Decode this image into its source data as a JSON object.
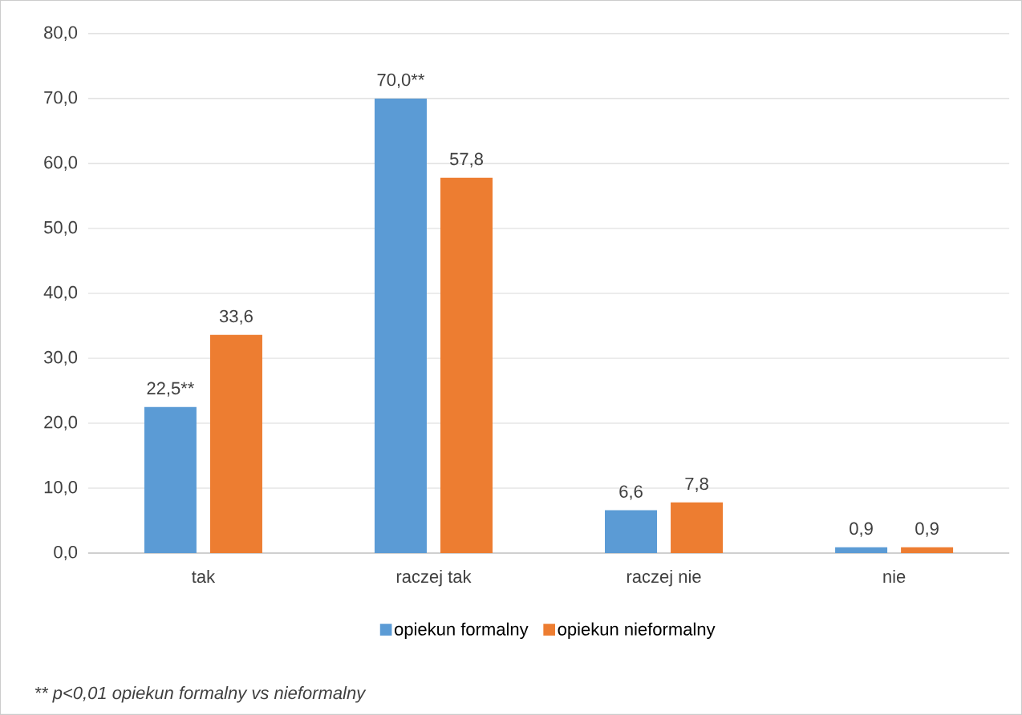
{
  "chart_data": {
    "type": "bar",
    "categories": [
      "tak",
      "raczej tak",
      "raczej nie",
      "nie"
    ],
    "series": [
      {
        "name": "opiekun formalny",
        "color": "#5b9bd5",
        "values": [
          22.5,
          70.0,
          6.6,
          0.9
        ],
        "value_labels": [
          "22,5**",
          "70,0**",
          "6,6",
          "0,9"
        ]
      },
      {
        "name": "opiekun nieformalny",
        "color": "#ed7d31",
        "values": [
          33.6,
          57.8,
          7.8,
          0.9
        ],
        "value_labels": [
          "33,6",
          "57,8",
          "7,8",
          "0,9"
        ]
      }
    ],
    "ylim": [
      0,
      80
    ],
    "yticks": [
      {
        "value": 0,
        "label": "0,0"
      },
      {
        "value": 10,
        "label": "10,0"
      },
      {
        "value": 20,
        "label": "20,0"
      },
      {
        "value": 30,
        "label": "30,0"
      },
      {
        "value": 40,
        "label": "40,0"
      },
      {
        "value": 50,
        "label": "50,0"
      },
      {
        "value": 60,
        "label": "60,0"
      },
      {
        "value": 70,
        "label": "70,0"
      },
      {
        "value": 80,
        "label": "80,0"
      }
    ],
    "grid": "y",
    "legend": "bottom",
    "annotations": [
      "** p<0,01 opiekun formalny vs nieformalny"
    ]
  }
}
